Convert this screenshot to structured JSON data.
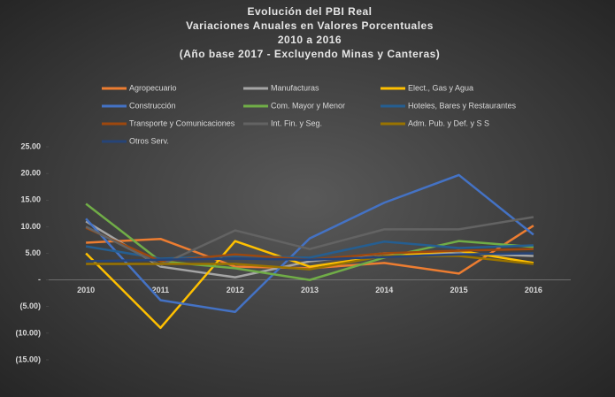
{
  "chart_data": {
    "type": "line",
    "title": [
      "Evolución del PBI Real",
      "Variaciones Anuales en Valores Porcentuales",
      "2010 a 2016",
      "(Año base 2017 - Excluyendo Minas y Canteras)"
    ],
    "categories": [
      "2010",
      "2011",
      "2012",
      "2013",
      "2014",
      "2015",
      "2016"
    ],
    "series": [
      {
        "name": "Agropecuario",
        "color": "#ed7d31",
        "values": [
          7,
          7.7,
          2.5,
          2.2,
          3.2,
          1.2,
          10.2
        ]
      },
      {
        "name": "Manufacturas",
        "color": "#a5a5a5",
        "values": [
          11,
          2.5,
          0.5,
          3.5,
          5,
          5,
          4.5
        ]
      },
      {
        "name": "Elect., Gas y Agua",
        "color": "#ffc000",
        "values": [
          5,
          -9,
          7.3,
          2.5,
          4.5,
          5.5,
          3.2
        ]
      },
      {
        "name": "Construcción",
        "color": "#4472c4",
        "values": [
          11.5,
          -3.8,
          -6,
          7.8,
          14.5,
          19.7,
          8.5
        ]
      },
      {
        "name": "Com. Mayor y Menor",
        "color": "#70ad47",
        "values": [
          14.3,
          3.5,
          2.2,
          0,
          4.2,
          7.3,
          6.2
        ]
      },
      {
        "name": "Hoteles, Bares y Restaurantes",
        "color": "#255e91",
        "values": [
          6.3,
          4,
          4.5,
          4.2,
          7.2,
          6,
          6.5
        ]
      },
      {
        "name": "Transporte y Comunicaciones",
        "color": "#9e480e",
        "values": [
          9.8,
          3.5,
          4.8,
          3.8,
          5,
          5.5,
          5.8
        ]
      },
      {
        "name": "Int. Fin. y Seg.",
        "color": "#636363",
        "values": [
          10,
          2.8,
          9.3,
          5.8,
          9.5,
          9.5,
          11.8
        ]
      },
      {
        "name": "Adm. Pub. y Def. y S S",
        "color": "#997300",
        "values": [
          3,
          3,
          3,
          2,
          4.5,
          4.5,
          3
        ]
      },
      {
        "name": "Otros Serv.",
        "color": "#264478",
        "values": [
          3.5,
          3.8,
          4,
          3.8,
          4.3,
          4.8,
          5
        ]
      }
    ],
    "ylim": [
      -15,
      25
    ],
    "yticks": [
      {
        "value": 25,
        "label": "25.00"
      },
      {
        "value": 20,
        "label": "20.00"
      },
      {
        "value": 15,
        "label": "15.00"
      },
      {
        "value": 10,
        "label": "10.00"
      },
      {
        "value": 5,
        "label": "5.00"
      },
      {
        "value": 0,
        "label": "-"
      },
      {
        "value": -5,
        "label": "(5.00)"
      },
      {
        "value": -10,
        "label": "(10.00)"
      },
      {
        "value": -15,
        "label": "(15.00)"
      }
    ],
    "legend": "top"
  }
}
